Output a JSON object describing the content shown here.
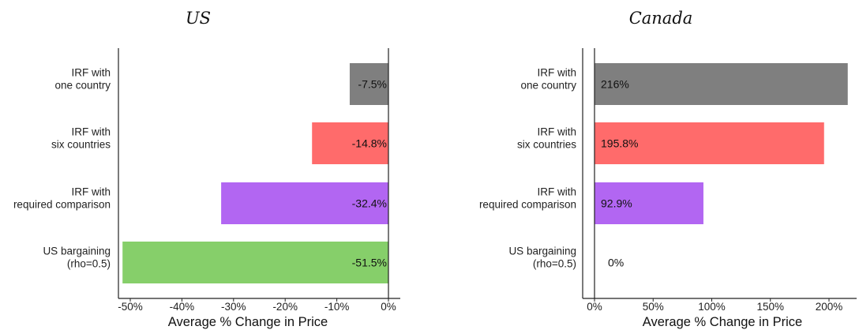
{
  "chart_data": [
    {
      "type": "bar",
      "orientation": "horizontal",
      "title": "US",
      "xlabel": "Average % Change in Price",
      "ylabel": "",
      "xlim": [
        -54,
        0
      ],
      "xticks": [
        -50,
        -40,
        -30,
        -20,
        -10,
        0
      ],
      "xtick_labels": [
        "-50%",
        "-40%",
        "-30%",
        "-20%",
        "-10%",
        "0%"
      ],
      "grid": false,
      "categories": [
        [
          "IRF with",
          "one country"
        ],
        [
          "IRF with",
          "six countries"
        ],
        [
          "IRF with",
          "required comparison"
        ],
        [
          "US bargaining",
          "(rho=0.5)"
        ]
      ],
      "values": [
        -7.5,
        -14.8,
        -32.4,
        -51.5
      ],
      "value_labels": [
        "-7.5%",
        "-14.8%",
        "-32.4%",
        "-51.5%"
      ],
      "colors": [
        "#7f7f7f",
        "#ff6b6b",
        "#b266f2",
        "#86cf6a"
      ]
    },
    {
      "type": "bar",
      "orientation": "horizontal",
      "title": "Canada",
      "xlabel": "Average % Change in Price",
      "ylabel": "",
      "xlim": [
        -5,
        220
      ],
      "xticks": [
        0,
        50,
        100,
        150,
        200
      ],
      "xtick_labels": [
        "0%",
        "50%",
        "100%",
        "150%",
        "200%"
      ],
      "grid": false,
      "categories": [
        [
          "IRF with",
          "one country"
        ],
        [
          "IRF with",
          "six countries"
        ],
        [
          "IRF with",
          "required comparison"
        ],
        [
          "US bargaining",
          "(rho=0.5)"
        ]
      ],
      "values": [
        216,
        195.8,
        92.9,
        0
      ],
      "value_labels": [
        "216%",
        "195.8%",
        "92.9%",
        "0%"
      ],
      "colors": [
        "#7f7f7f",
        "#ff6b6b",
        "#b266f2",
        "#86cf6a"
      ]
    }
  ]
}
